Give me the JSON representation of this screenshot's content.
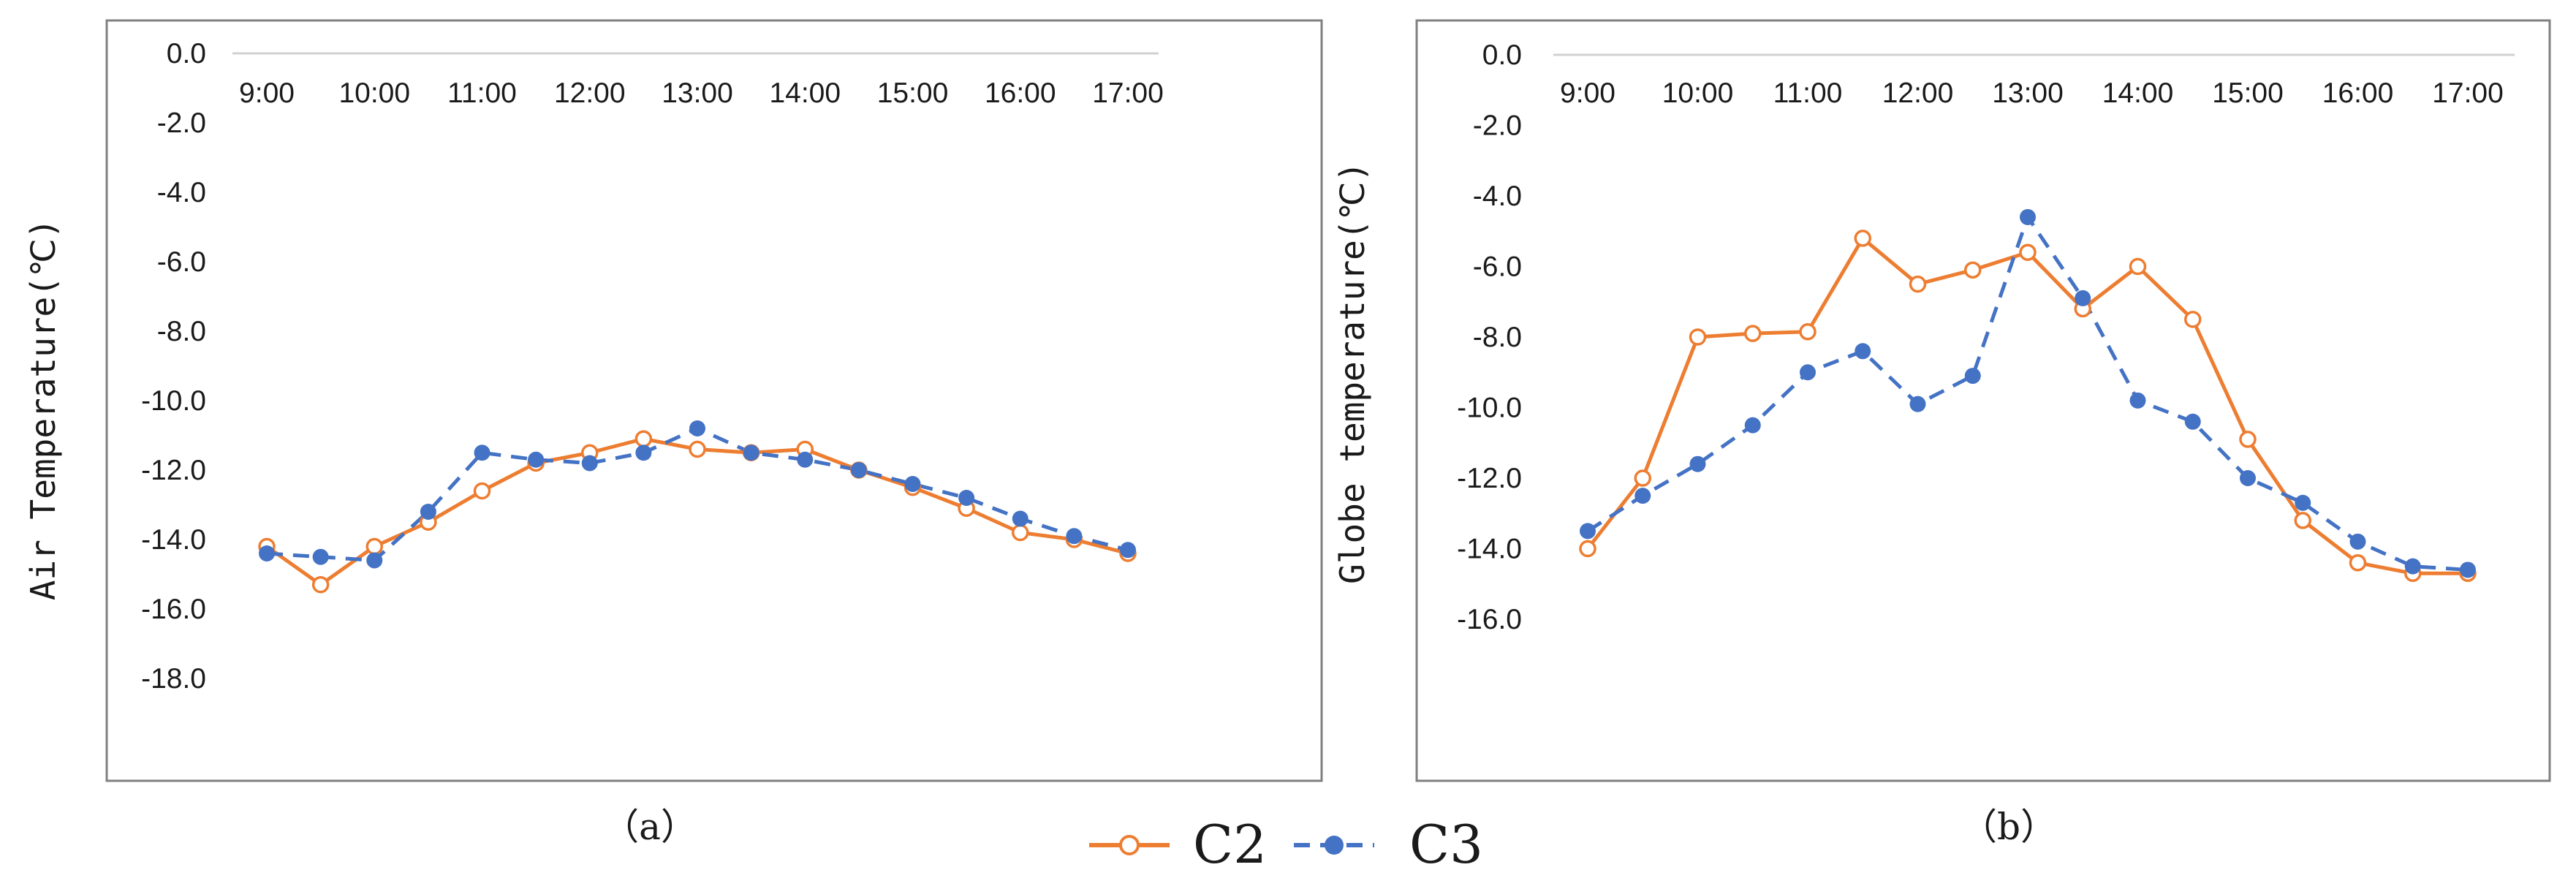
{
  "colors": {
    "C2": "#ED7D31",
    "C3": "#4472C4",
    "frame": "#808080",
    "text": "#1a1a1a"
  },
  "legend": {
    "series1": "C2",
    "series2": "C3"
  },
  "chart_data": [
    {
      "type": "line",
      "caption": "（a）",
      "ylabel": "Air Temperature(℃)",
      "ylim": [
        0,
        -20
      ],
      "y_ticks": [
        "0.0",
        "-2.0",
        "-4.0",
        "-6.0",
        "-8.0",
        "-10.0",
        "-12.0",
        "-14.0",
        "-16.0",
        "-18.0"
      ],
      "x_labels": [
        "9:00",
        "10:00",
        "11:00",
        "12:00",
        "13:00",
        "14:00",
        "15:00",
        "16:00",
        "17:00"
      ],
      "x": [
        9.0,
        9.5,
        10.0,
        10.5,
        11.0,
        11.5,
        12.0,
        12.5,
        13.0,
        13.5,
        14.0,
        14.5,
        15.0,
        15.5,
        16.0,
        16.5,
        17.0
      ],
      "series": [
        {
          "name": "C2",
          "values": [
            -14.2,
            -15.3,
            -14.2,
            -13.5,
            -12.6,
            -11.8,
            -11.5,
            -11.1,
            -11.4,
            -11.5,
            -11.4,
            -12.0,
            -12.5,
            -13.1,
            -13.8,
            -14.0,
            -14.4
          ]
        },
        {
          "name": "C3",
          "values": [
            -14.4,
            -14.5,
            -14.6,
            -13.2,
            -11.5,
            -11.7,
            -11.8,
            -11.5,
            -10.8,
            -11.5,
            -11.7,
            -12.0,
            -12.4,
            -12.8,
            -13.4,
            -13.9,
            -14.3
          ]
        }
      ]
    },
    {
      "type": "line",
      "caption": "（b）",
      "ylabel": "Globe temperature(℃)",
      "ylim": [
        0,
        -18
      ],
      "y_ticks": [
        "0.0",
        "-2.0",
        "-4.0",
        "-6.0",
        "-8.0",
        "-10.0",
        "-12.0",
        "-14.0",
        "-16.0"
      ],
      "x_labels": [
        "9:00",
        "10:00",
        "11:00",
        "12:00",
        "13:00",
        "14:00",
        "15:00",
        "16:00",
        "17:00"
      ],
      "x": [
        9.0,
        9.5,
        10.0,
        10.5,
        11.0,
        11.5,
        12.0,
        12.5,
        13.0,
        13.5,
        14.0,
        14.5,
        15.0,
        15.5,
        16.0,
        16.5,
        17.0
      ],
      "series": [
        {
          "name": "C2",
          "values": [
            -14.0,
            -12.0,
            -8.0,
            -7.9,
            -7.85,
            -5.2,
            -6.5,
            -6.1,
            -5.6,
            -7.2,
            -6.0,
            -7.5,
            -10.9,
            -13.2,
            -14.4,
            -14.7,
            -14.7
          ]
        },
        {
          "name": "C3",
          "values": [
            -13.5,
            -12.5,
            -11.6,
            -10.5,
            -9.0,
            -8.4,
            -9.9,
            -9.1,
            -4.6,
            -6.9,
            -9.8,
            -10.4,
            -12.0,
            -12.7,
            -13.8,
            -14.5,
            -14.6
          ]
        }
      ]
    }
  ]
}
